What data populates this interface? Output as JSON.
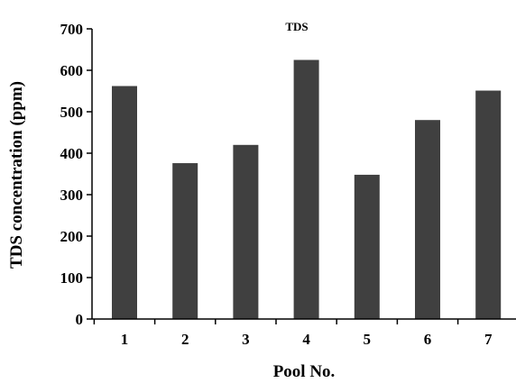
{
  "chart_data": {
    "type": "bar",
    "title": "TDS",
    "xlabel": "Pool No.",
    "ylabel": "TDS concentration (ppm)",
    "categories": [
      "1",
      "2",
      "3",
      "4",
      "5",
      "6",
      "7"
    ],
    "values": [
      562,
      376,
      420,
      625,
      348,
      480,
      551
    ],
    "ylim": [
      0,
      700
    ],
    "yticks": [
      "0",
      "100",
      "200",
      "300",
      "400",
      "500",
      "600",
      "700"
    ],
    "grid": false,
    "legend": "none",
    "colors": {
      "bar": "#404040",
      "axis": "#000000"
    }
  }
}
